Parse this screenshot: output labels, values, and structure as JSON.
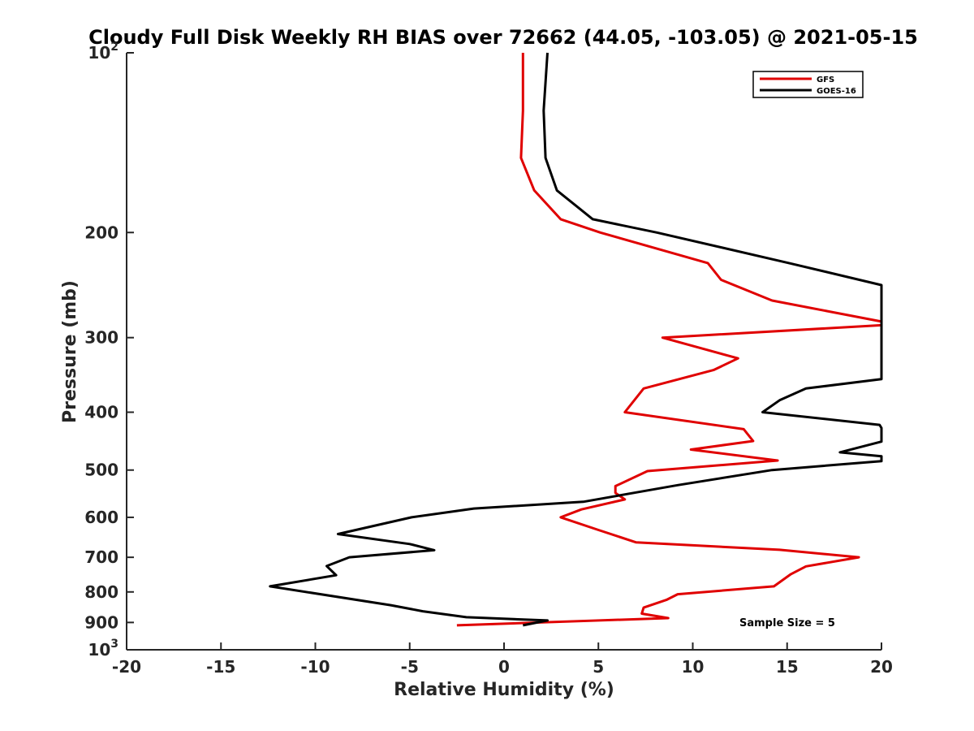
{
  "chart_data": {
    "type": "line",
    "title": "Cloudy Full Disk Weekly RH BIAS over 72662 (44.05, -103.05) @ 2021-05-15",
    "xlabel": "Relative Humidity (%)",
    "ylabel": "Pressure (mb)",
    "xlim": [
      -20,
      20
    ],
    "ylim": [
      1000,
      100
    ],
    "yscale": "log",
    "grid": false,
    "legend_position": "top-right",
    "xticks": [
      "-20",
      "-15",
      "-10",
      "-5",
      "0",
      "5",
      "10",
      "15",
      "20"
    ],
    "yticks": [
      {
        "value": 100,
        "base": "10",
        "exp": "2"
      },
      {
        "value": 200,
        "label": "200"
      },
      {
        "value": 300,
        "label": "300"
      },
      {
        "value": 400,
        "label": "400"
      },
      {
        "value": 500,
        "label": "500"
      },
      {
        "value": 600,
        "label": "600"
      },
      {
        "value": 700,
        "label": "700"
      },
      {
        "value": 800,
        "label": "800"
      },
      {
        "value": 900,
        "label": "900"
      },
      {
        "value": 1000,
        "base": "10",
        "exp": "3"
      }
    ],
    "series": [
      {
        "name": "GFS",
        "color": "#e00000",
        "points": [
          [
            1.0,
            100
          ],
          [
            1.0,
            125
          ],
          [
            0.9,
            150
          ],
          [
            1.6,
            170
          ],
          [
            3.0,
            190
          ],
          [
            5.1,
            200
          ],
          [
            10.8,
            225
          ],
          [
            11.5,
            240
          ],
          [
            14.2,
            260
          ],
          [
            20.0,
            282
          ],
          [
            20.0,
            286
          ],
          [
            8.4,
            300
          ],
          [
            12.4,
            325
          ],
          [
            11.1,
            340
          ],
          [
            7.4,
            365
          ],
          [
            6.4,
            400
          ],
          [
            12.7,
            427
          ],
          [
            13.2,
            447
          ],
          [
            9.9,
            462
          ],
          [
            14.5,
            482
          ],
          [
            7.6,
            502
          ],
          [
            5.9,
            532
          ],
          [
            5.9,
            546
          ],
          [
            6.4,
            560
          ],
          [
            4.1,
            582
          ],
          [
            3.0,
            600
          ],
          [
            5.0,
            630
          ],
          [
            7.0,
            661
          ],
          [
            14.6,
            680
          ],
          [
            18.8,
            700
          ],
          [
            16.0,
            725
          ],
          [
            15.2,
            747
          ],
          [
            14.3,
            783
          ],
          [
            9.2,
            807
          ],
          [
            8.6,
            825
          ],
          [
            7.4,
            850
          ],
          [
            7.3,
            870
          ],
          [
            8.7,
            885
          ],
          [
            -2.5,
            910
          ]
        ]
      },
      {
        "name": "GOES-16",
        "color": "#000000",
        "points": [
          [
            2.3,
            100
          ],
          [
            2.1,
            125
          ],
          [
            2.2,
            150
          ],
          [
            2.8,
            170
          ],
          [
            4.7,
            190
          ],
          [
            8.1,
            200
          ],
          [
            15.1,
            225
          ],
          [
            20.0,
            245
          ],
          [
            20.0,
            352
          ],
          [
            16.0,
            365
          ],
          [
            14.6,
            382
          ],
          [
            13.7,
            400
          ],
          [
            19.9,
            420
          ],
          [
            20.0,
            425
          ],
          [
            20.0,
            448
          ],
          [
            17.8,
            467
          ],
          [
            20.0,
            474
          ],
          [
            20.0,
            483
          ],
          [
            14.2,
            500
          ],
          [
            9.2,
            530
          ],
          [
            4.2,
            565
          ],
          [
            -1.6,
            580
          ],
          [
            -4.9,
            600
          ],
          [
            -8.8,
            640
          ],
          [
            -5.0,
            665
          ],
          [
            -3.7,
            681
          ],
          [
            -8.2,
            700
          ],
          [
            -9.4,
            724
          ],
          [
            -8.9,
            750
          ],
          [
            -12.4,
            783
          ],
          [
            -6.0,
            842
          ],
          [
            -4.3,
            862
          ],
          [
            -2.0,
            882
          ],
          [
            2.3,
            893
          ],
          [
            1.0,
            910
          ]
        ]
      }
    ],
    "annotations": [
      "Sample Size = 5"
    ]
  }
}
